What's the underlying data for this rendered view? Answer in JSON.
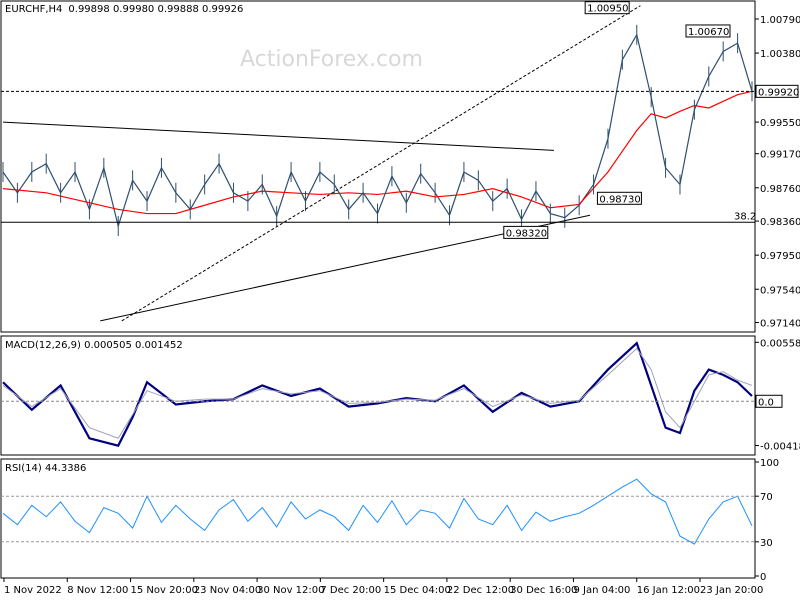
{
  "chart_data": [
    {
      "type": "line",
      "title": "EURCHF,H4",
      "ohlc": [
        "0.99898",
        "0.99980",
        "0.99888",
        "0.99926"
      ],
      "watermark": "ActionForex.com",
      "ylim": [
        0.9705,
        1.0085
      ],
      "yticks": [
        "1.00790",
        "1.00380",
        "0.99550",
        "0.99170",
        "0.98760",
        "0.98360",
        "0.97950",
        "0.97540",
        "0.97140"
      ],
      "current_price": "0.99920",
      "fib_level": {
        "label": "38.2",
        "value": 0.98345
      },
      "annotations": [
        {
          "label": "1.00950",
          "x": 87.5,
          "y": 1.0095
        },
        {
          "label": "1.00670",
          "x": 101.5,
          "y": 1.0067
        },
        {
          "label": "0.98730",
          "x": 89.2,
          "y": 0.9873
        },
        {
          "label": "0.98320",
          "x": 76.2,
          "y": 0.9832
        }
      ],
      "trendlines": [
        {
          "style": "solid",
          "from": [
            0,
            0.9955
          ],
          "to": [
            76.5,
            0.9921
          ]
        },
        {
          "style": "solid",
          "from": [
            13.5,
            0.9716
          ],
          "to": [
            81.5,
            0.9843
          ]
        },
        {
          "style": "dashed",
          "from": [
            16.5,
            0.9716
          ],
          "to": [
            88.5,
            1.0095
          ]
        }
      ],
      "series": [
        {
          "name": "price",
          "color": "#2f4f6f",
          "x": [
            0,
            2,
            4,
            6,
            8,
            10,
            12,
            14,
            16,
            18,
            20,
            22,
            24,
            26,
            28,
            30,
            32,
            34,
            36,
            38,
            40,
            42,
            44,
            46,
            48,
            50,
            52,
            54,
            56,
            58,
            60,
            62,
            64,
            66,
            68,
            70,
            72,
            74,
            76,
            78,
            80,
            82,
            84,
            86,
            88,
            90,
            92,
            94,
            96,
            98,
            100,
            102,
            104
          ],
          "values": [
            0.9895,
            0.987,
            0.9895,
            0.9905,
            0.987,
            0.9895,
            0.985,
            0.99,
            0.983,
            0.9885,
            0.986,
            0.99,
            0.987,
            0.985,
            0.988,
            0.9905,
            0.987,
            0.986,
            0.988,
            0.9842,
            0.9895,
            0.986,
            0.9895,
            0.988,
            0.985,
            0.987,
            0.9845,
            0.989,
            0.9858,
            0.9893,
            0.987,
            0.9843,
            0.9895,
            0.9885,
            0.986,
            0.9875,
            0.9838,
            0.9872,
            0.9845,
            0.984,
            0.9855,
            0.988,
            0.9935,
            1.003,
            1.006,
            0.9985,
            0.99,
            0.988,
            0.997,
            1.001,
            1.004,
            1.005,
            0.9992
          ]
        },
        {
          "name": "",
          "color": "#ff0000",
          "x": [
            0,
            6,
            10,
            16,
            20,
            24,
            28,
            32,
            36,
            40,
            44,
            48,
            52,
            56,
            60,
            64,
            68,
            72,
            76,
            80,
            84,
            86,
            88,
            90,
            92,
            94,
            96,
            98,
            100,
            102,
            104
          ],
          "values": [
            0.9875,
            0.987,
            0.9862,
            0.985,
            0.9845,
            0.9845,
            0.9855,
            0.9865,
            0.9872,
            0.987,
            0.9868,
            0.987,
            0.9868,
            0.9872,
            0.9865,
            0.9868,
            0.9875,
            0.9865,
            0.9852,
            0.9856,
            0.9895,
            0.992,
            0.9945,
            0.9965,
            0.996,
            0.9968,
            0.9975,
            0.9972,
            0.998,
            0.9988,
            0.9992
          ]
        }
      ]
    },
    {
      "type": "line",
      "title": "MACD(12,26,9) 0.000505 0.001452",
      "ylim": [
        -0.0048,
        0.0058
      ],
      "yticks": [
        "0.005582",
        "0.00",
        "-0.004188"
      ],
      "current_value": "0.0",
      "series": [
        {
          "name": "",
          "color": "#000080",
          "x": [
            0,
            4,
            8,
            12,
            16,
            18,
            20,
            24,
            28,
            32,
            36,
            40,
            44,
            48,
            52,
            56,
            60,
            64,
            68,
            72,
            76,
            80,
            84,
            88,
            90,
            92,
            94,
            96,
            98,
            100,
            102,
            104
          ],
          "values": [
            0.0018,
            -0.0008,
            0.0015,
            -0.0035,
            -0.0042,
            -0.0015,
            0.0018,
            -0.0003,
            0.0,
            0.0002,
            0.0015,
            0.0005,
            0.0012,
            -0.0005,
            -0.0002,
            0.0003,
            0.0,
            0.0015,
            -0.001,
            0.0008,
            -0.0005,
            0.0,
            0.003,
            0.0055,
            0.0015,
            -0.0025,
            -0.003,
            0.001,
            0.003,
            0.0025,
            0.0018,
            0.0005
          ]
        },
        {
          "name": "",
          "color": "#a0a0b8",
          "x": [
            0,
            4,
            8,
            12,
            16,
            20,
            24,
            28,
            32,
            36,
            40,
            44,
            48,
            52,
            56,
            60,
            64,
            68,
            72,
            76,
            80,
            84,
            88,
            90,
            92,
            94,
            96,
            98,
            100,
            102,
            104
          ],
          "values": [
            0.0015,
            -0.0005,
            0.0012,
            -0.0025,
            -0.0035,
            0.001,
            0.0,
            0.0002,
            0.0002,
            0.0012,
            0.0007,
            0.001,
            -0.0002,
            -0.0001,
            0.0002,
            0.0001,
            0.0012,
            -0.0005,
            0.0006,
            -0.0002,
            0.0001,
            0.0025,
            0.005,
            0.003,
            -0.001,
            -0.0025,
            0.0,
            0.0025,
            0.0028,
            0.002,
            0.0015
          ]
        }
      ]
    },
    {
      "type": "line",
      "title": "RSI(14) 44.3386",
      "ylim": [
        0,
        100
      ],
      "yticks": [
        "100",
        "70",
        "30",
        "0"
      ],
      "levels": [
        70,
        30
      ],
      "series": [
        {
          "name": "",
          "color": "#1e90ff",
          "x": [
            0,
            2,
            4,
            6,
            8,
            10,
            12,
            14,
            16,
            18,
            20,
            22,
            24,
            26,
            28,
            30,
            32,
            34,
            36,
            38,
            40,
            42,
            44,
            46,
            48,
            50,
            52,
            54,
            56,
            58,
            60,
            62,
            64,
            66,
            68,
            70,
            72,
            74,
            76,
            78,
            80,
            82,
            84,
            86,
            88,
            90,
            92,
            94,
            96,
            98,
            100,
            102,
            104
          ],
          "values": [
            55,
            45,
            62,
            52,
            65,
            48,
            38,
            60,
            55,
            42,
            70,
            47,
            62,
            50,
            40,
            58,
            67,
            48,
            60,
            43,
            65,
            50,
            58,
            52,
            40,
            62,
            47,
            66,
            45,
            58,
            55,
            42,
            68,
            50,
            45,
            62,
            40,
            56,
            48,
            52,
            55,
            62,
            70,
            78,
            85,
            72,
            65,
            35,
            28,
            50,
            65,
            70,
            44
          ]
        }
      ]
    }
  ],
  "xaxis": {
    "ticks": [
      "1 Nov 2022",
      "8 Nov 12:00",
      "15 Nov 20:00",
      "23 Nov 04:00",
      "30 Nov 12:00",
      "7 Dec 20:00",
      "15 Dec 04:00",
      "22 Dec 12:00",
      "30 Dec 16:00",
      "9 Jan 04:00",
      "16 Jan 12:00",
      "23 Jan 20:00"
    ]
  },
  "colors": {
    "bars": "#2f4f6f",
    "ma": "#ff0000",
    "macd": "#000080",
    "signal": "#a0a0b8",
    "rsi": "#1e90ff",
    "watermark": "#d8d8d8"
  }
}
